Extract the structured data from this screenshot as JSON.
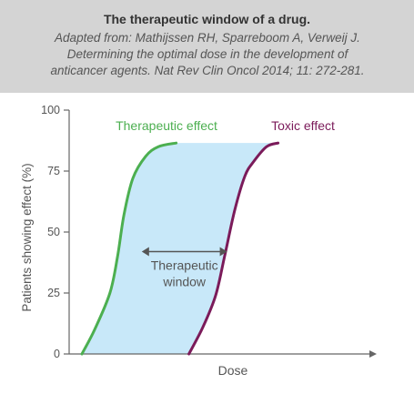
{
  "header": {
    "title": "The therapeutic window of a drug.",
    "subtitle_lines": [
      "Adapted from: Mathijssen RH, Sparreboom A, Verweij J.",
      "Determining the optimal dose in the development of",
      "anticancer agents. Nat Rev Clin Oncol 2014; 11: 272-281."
    ]
  },
  "chart_data": {
    "type": "line",
    "xlabel": "Dose",
    "ylabel": "Patients showing effect (%)",
    "ylim": [
      0,
      100
    ],
    "yticks": [
      "0",
      "25",
      "50",
      "75",
      "100"
    ],
    "series": [
      {
        "name": "Therapeutic effect",
        "color": "#4caf50",
        "x": [
          0.0,
          0.1,
          0.22,
          0.28,
          0.33,
          0.4,
          0.5,
          0.6,
          0.74
        ],
        "y": [
          0,
          10,
          25,
          40,
          57,
          72,
          81,
          85,
          86.5
        ]
      },
      {
        "name": "Toxic effect",
        "color": "#7b1b5a",
        "x": [
          0.84,
          0.95,
          1.05,
          1.12,
          1.2,
          1.28,
          1.35,
          1.45,
          1.54
        ],
        "y": [
          0,
          11,
          24,
          40,
          59,
          73,
          79,
          85,
          86.5
        ]
      }
    ],
    "xlim": [
      -0.1,
      2.3
    ],
    "annotation": {
      "label_lines": [
        "Therapeutic",
        "window"
      ],
      "color": "#555555",
      "fill": "#c8e8f9",
      "arrow_y": 42,
      "arrow_x": [
        0.47,
        1.14
      ]
    }
  }
}
